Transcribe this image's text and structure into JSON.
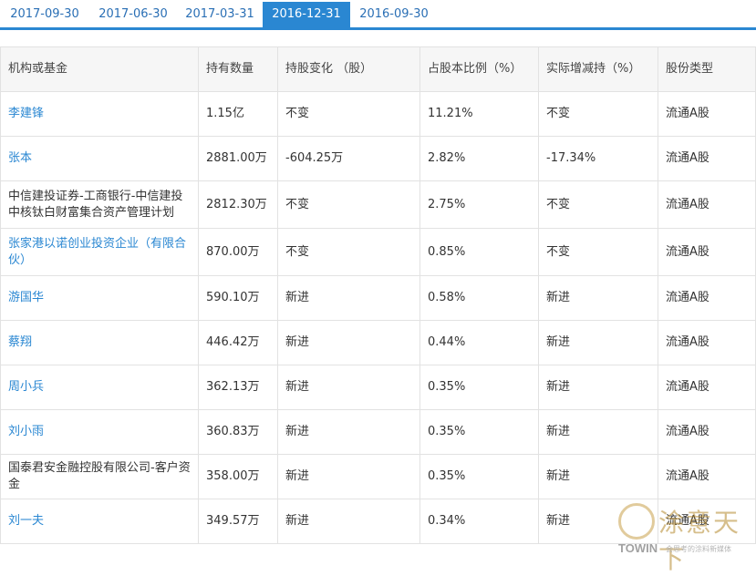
{
  "tabs": [
    {
      "label": "2017-09-30",
      "active": false
    },
    {
      "label": "2017-06-30",
      "active": false
    },
    {
      "label": "2017-03-31",
      "active": false
    },
    {
      "label": "2016-12-31",
      "active": true
    },
    {
      "label": "2016-09-30",
      "active": false
    }
  ],
  "table": {
    "headers": [
      "机构或基金",
      "持有数量",
      "持股变化 （股）",
      "占股本比例（%）",
      "实际增减持（%）",
      "股份类型"
    ],
    "rows": [
      {
        "holder": "李建锋",
        "holder_link": true,
        "quantity": "1.15亿",
        "change": "不变",
        "ratio": "11.21%",
        "actual": "不变",
        "share_type": "流通A股"
      },
      {
        "holder": "张本",
        "holder_link": true,
        "quantity": "2881.00万",
        "change": "-604.25万",
        "ratio": "2.82%",
        "actual": "-17.34%",
        "share_type": "流通A股"
      },
      {
        "holder": "中信建投证券-工商银行-中信建投中核钛白财富集合资产管理计划",
        "holder_link": false,
        "quantity": "2812.30万",
        "change": "不变",
        "ratio": "2.75%",
        "actual": "不变",
        "share_type": "流通A股"
      },
      {
        "holder": "张家港以诺创业投资企业（有限合伙）",
        "holder_link": true,
        "quantity": "870.00万",
        "change": "不变",
        "ratio": "0.85%",
        "actual": "不变",
        "share_type": "流通A股"
      },
      {
        "holder": "游国华",
        "holder_link": true,
        "quantity": "590.10万",
        "change": "新进",
        "ratio": "0.58%",
        "actual": "新进",
        "share_type": "流通A股"
      },
      {
        "holder": "蔡翔",
        "holder_link": true,
        "quantity": "446.42万",
        "change": "新进",
        "ratio": "0.44%",
        "actual": "新进",
        "share_type": "流通A股"
      },
      {
        "holder": "周小兵",
        "holder_link": true,
        "quantity": "362.13万",
        "change": "新进",
        "ratio": "0.35%",
        "actual": "新进",
        "share_type": "流通A股"
      },
      {
        "holder": "刘小雨",
        "holder_link": true,
        "quantity": "360.83万",
        "change": "新进",
        "ratio": "0.35%",
        "actual": "新进",
        "share_type": "流通A股"
      },
      {
        "holder": "国泰君安金融控股有限公司-客户资金",
        "holder_link": false,
        "quantity": "358.00万",
        "change": "新进",
        "ratio": "0.35%",
        "actual": "新进",
        "share_type": "流通A股"
      },
      {
        "holder": "刘一夫",
        "holder_link": true,
        "quantity": "349.57万",
        "change": "新进",
        "ratio": "0.34%",
        "actual": "新进",
        "share_type": "流通A股"
      }
    ]
  },
  "watermark": {
    "title": "涂意天下",
    "brand": "TOWIN",
    "slogan": "会思考的涂料新媒体"
  },
  "colors": {
    "accent": "#2a87d2",
    "link": "#2a87d2",
    "header_bg": "#f6f6f6",
    "border": "#e2e2e2"
  }
}
